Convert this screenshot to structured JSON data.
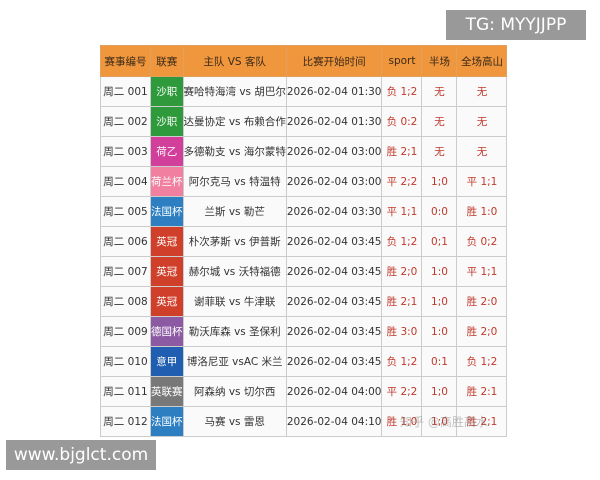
{
  "badge": "TG: MYYJJPP",
  "site": "www.bjglct.com",
  "watermark": "知乎 @高胜高水",
  "table": {
    "headers": [
      "赛事编号",
      "联赛",
      "主队 VS 客队",
      "比赛开始时间",
      "sport",
      "半场",
      "全场高山"
    ],
    "rows": [
      {
        "league_color": "#2f9a3c",
        "cells": [
          "周二 001",
          "沙职",
          "赛哈特海湾 vs 胡巴尔",
          "2026-02-04 01:30",
          "负 1;2",
          "无",
          "无"
        ]
      },
      {
        "league_color": "#2f9a3c",
        "cells": [
          "周二 002",
          "沙职",
          "达曼协定 vs 布赖合作",
          "2026-02-04 01:30",
          "负 0:2",
          "无",
          "无"
        ]
      },
      {
        "league_color": "#d13f9a",
        "cells": [
          "周二 003",
          "荷乙",
          "多德勒支 vs 海尔蒙特",
          "2026-02-04 03:00",
          "胜 2;1",
          "无",
          "无"
        ]
      },
      {
        "league_color": "#f07fa0",
        "cells": [
          "周二 004",
          "荷兰杯",
          "阿尔克马 vs 特温特",
          "2026-02-04 03:00",
          "平 2;2",
          "1;0",
          "平 1;1"
        ]
      },
      {
        "league_color": "#2d7fc1",
        "cells": [
          "周二 005",
          "法国杯",
          "兰斯 vs 勒芒",
          "2026-02-04 03:30",
          "平 1;1",
          "0:0",
          "胜 1:0"
        ]
      },
      {
        "league_color": "#cf3f2a",
        "cells": [
          "周二 006",
          "英冠",
          "朴次茅斯 vs 伊普斯",
          "2026-02-04 03:45",
          "负 1;2",
          "0;1",
          "负 0;2"
        ]
      },
      {
        "league_color": "#cf3f2a",
        "cells": [
          "周二 007",
          "英冠",
          "赫尔城 vs 沃特福德",
          "2026-02-04 03:45",
          "胜 2;0",
          "1:0",
          "平 1;1"
        ]
      },
      {
        "league_color": "#cf3f2a",
        "cells": [
          "周二 008",
          "英冠",
          "谢菲联 vs 牛津联",
          "2026-02-04 03:45",
          "胜 2;1",
          "1;0",
          "胜 2:0"
        ]
      },
      {
        "league_color": "#8b5aa2",
        "cells": [
          "周二 009",
          "德国杯",
          "勒沃库森 vs 圣保利",
          "2026-02-04 03:45",
          "胜 3:0",
          "1:0",
          "胜 2;0"
        ]
      },
      {
        "league_color": "#1f5eb0",
        "cells": [
          "周二 010",
          "意甲",
          "博洛尼亚 vsAC 米兰",
          "2026-02-04 03:45",
          "负 1;2",
          "0:1",
          "负 1;2"
        ]
      },
      {
        "league_color": "#787878",
        "cells": [
          "周二 011",
          "英联赛",
          "阿森纳 vs 切尔西",
          "2026-02-04 04:00",
          "平 2;2",
          "1;0",
          "胜 2:1"
        ]
      },
      {
        "league_color": "#2d7fc1",
        "cells": [
          "周二 012",
          "法国杯",
          "马赛 vs 雷恩",
          "2026-02-04 04:10",
          "胜 1;0",
          "1;0",
          "胜 2;1"
        ]
      }
    ]
  }
}
